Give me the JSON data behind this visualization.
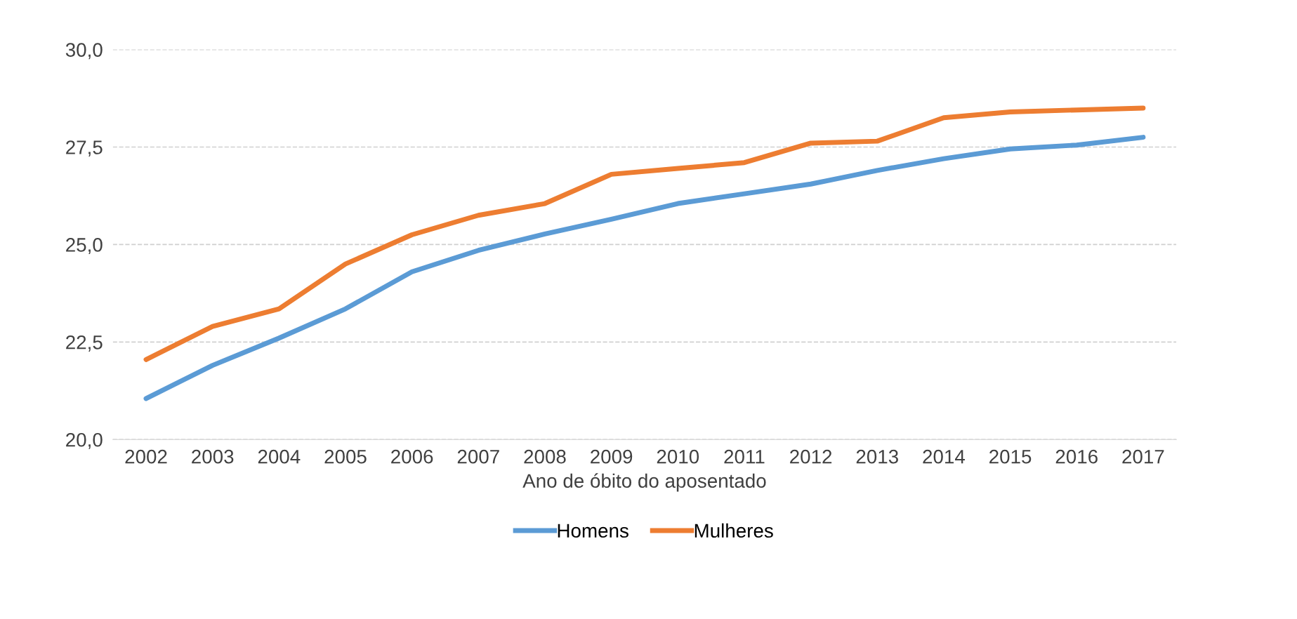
{
  "chart_data": {
    "type": "line",
    "xlabel": "Ano de óbito do aposentado",
    "categories": [
      "2002",
      "2003",
      "2004",
      "2005",
      "2006",
      "2007",
      "2008",
      "2009",
      "2010",
      "2011",
      "2012",
      "2013",
      "2014",
      "2015",
      "2016",
      "2017"
    ],
    "series": [
      {
        "name": "Homens",
        "color": "#5b9bd5",
        "values": [
          21.05,
          21.9,
          22.6,
          23.35,
          24.3,
          24.85,
          25.27,
          25.65,
          26.05,
          26.3,
          26.55,
          26.9,
          27.2,
          27.45,
          27.55,
          27.75
        ]
      },
      {
        "name": "Mulheres",
        "color": "#ed7d31",
        "values": [
          22.05,
          22.9,
          23.35,
          24.5,
          25.25,
          25.75,
          26.05,
          26.8,
          26.95,
          27.1,
          27.6,
          27.65,
          28.25,
          28.4,
          28.45,
          28.5
        ]
      }
    ],
    "ylim": [
      20,
      30
    ],
    "yticks": [
      {
        "value": 20,
        "label": "20,0"
      },
      {
        "value": 22.5,
        "label": "22,5"
      },
      {
        "value": 25,
        "label": "25,0"
      },
      {
        "value": 27.5,
        "label": "27,5"
      },
      {
        "value": 30,
        "label": "30,0"
      }
    ],
    "grid": "y",
    "legend": "bottom",
    "marker": "none",
    "line_style": "solid"
  }
}
